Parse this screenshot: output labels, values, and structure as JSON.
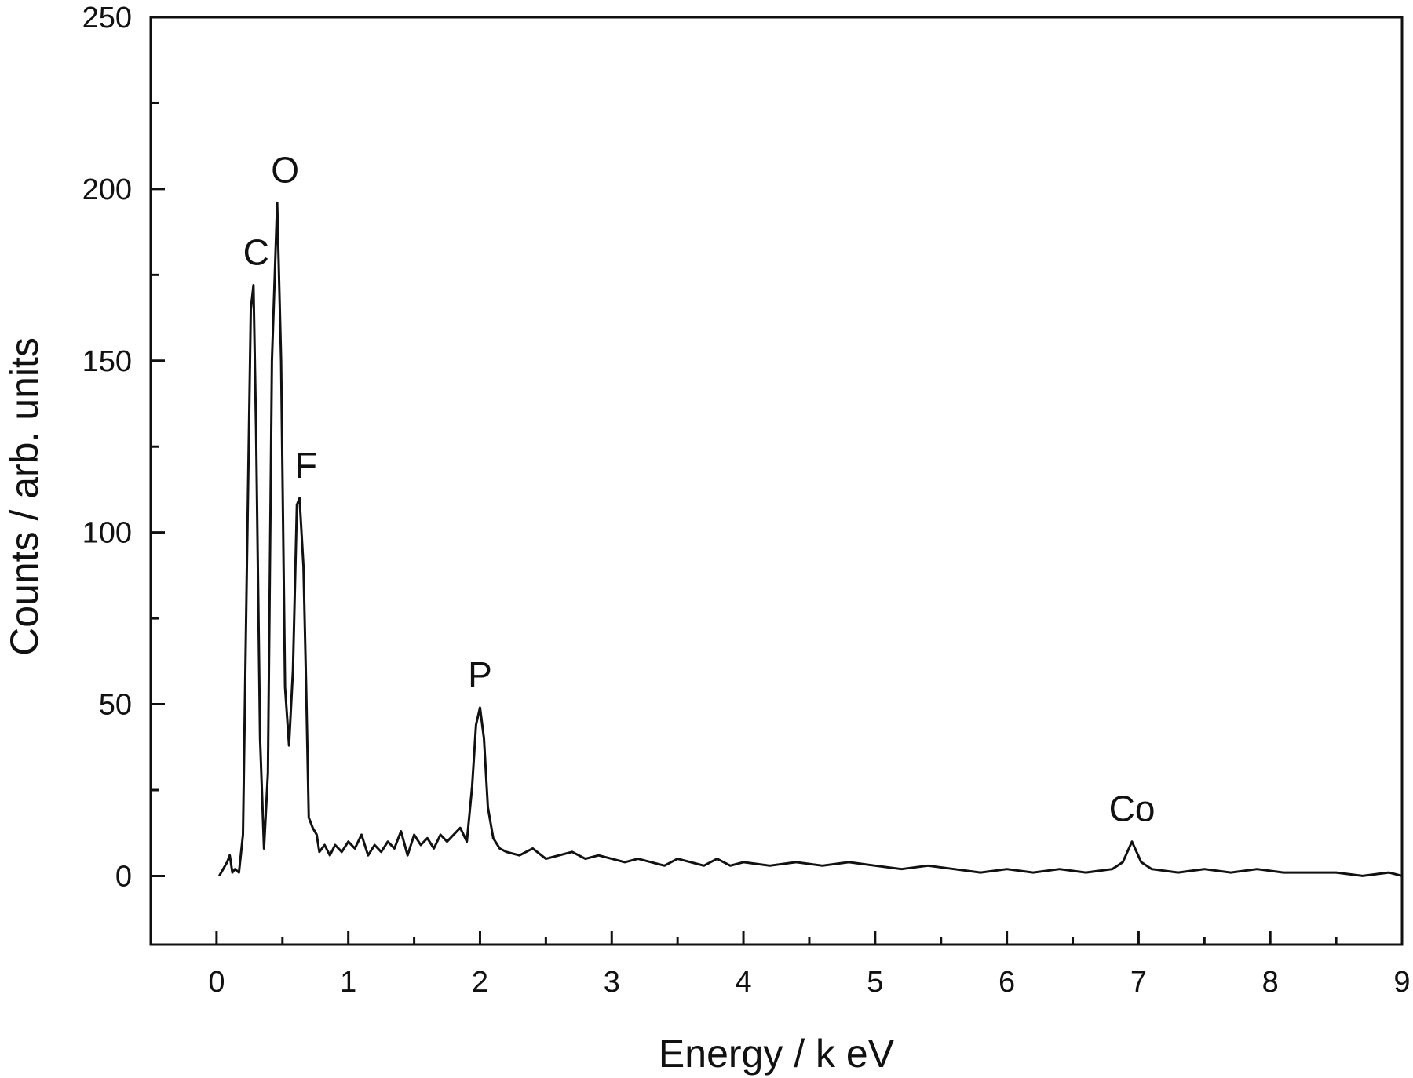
{
  "chart_data": {
    "type": "line",
    "title": "",
    "xlabel": "Energy /  k eV",
    "ylabel": "Counts / arb. units",
    "xlim": [
      -0.5,
      9
    ],
    "ylim": [
      -20,
      250
    ],
    "x_ticks": [
      0,
      1,
      2,
      3,
      4,
      5,
      6,
      7,
      8,
      9
    ],
    "x_tick_labels": [
      "0",
      "1",
      "2",
      "3",
      "4",
      "5",
      "6",
      "7",
      "8",
      "9"
    ],
    "y_ticks": [
      0,
      50,
      100,
      150,
      200,
      250
    ],
    "y_tick_labels": [
      "0",
      "50",
      "100",
      "150",
      "200",
      "250"
    ],
    "grid": false,
    "legend": false,
    "line_color": "#111111",
    "series": [
      {
        "x": [
          0.02,
          0.08,
          0.1,
          0.12,
          0.14,
          0.17,
          0.2,
          0.23,
          0.26,
          0.28,
          0.3,
          0.33,
          0.36,
          0.39,
          0.42,
          0.46,
          0.49,
          0.52,
          0.55,
          0.58,
          0.61,
          0.63,
          0.66,
          0.68,
          0.7,
          0.73,
          0.76,
          0.78,
          0.82,
          0.86,
          0.9,
          0.95,
          1.0,
          1.05,
          1.1,
          1.15,
          1.2,
          1.25,
          1.3,
          1.35,
          1.4,
          1.45,
          1.5,
          1.55,
          1.6,
          1.65,
          1.7,
          1.75,
          1.8,
          1.85,
          1.9,
          1.94,
          1.97,
          2.0,
          2.03,
          2.06,
          2.1,
          2.15,
          2.2,
          2.3,
          2.4,
          2.5,
          2.6,
          2.7,
          2.8,
          2.9,
          3.0,
          3.1,
          3.2,
          3.3,
          3.4,
          3.5,
          3.6,
          3.7,
          3.8,
          3.9,
          4.0,
          4.2,
          4.4,
          4.6,
          4.8,
          5.0,
          5.2,
          5.4,
          5.6,
          5.8,
          6.0,
          6.2,
          6.4,
          6.6,
          6.8,
          6.88,
          6.95,
          7.02,
          7.1,
          7.3,
          7.5,
          7.7,
          7.9,
          8.1,
          8.3,
          8.5,
          8.7,
          8.9,
          9.0
        ],
        "y": [
          0,
          4,
          6,
          1,
          2,
          1,
          12,
          90,
          165,
          172,
          130,
          40,
          8,
          30,
          150,
          196,
          150,
          55,
          38,
          60,
          108,
          110,
          90,
          55,
          17,
          14,
          12,
          7,
          9,
          6,
          9,
          7,
          10,
          8,
          12,
          6,
          9,
          7,
          10,
          8,
          13,
          6,
          12,
          9,
          11,
          8,
          12,
          10,
          12,
          14,
          10,
          26,
          44,
          49,
          40,
          20,
          11,
          8,
          7,
          6,
          8,
          5,
          6,
          7,
          5,
          6,
          5,
          4,
          5,
          4,
          3,
          5,
          4,
          3,
          5,
          3,
          4,
          3,
          4,
          3,
          4,
          3,
          2,
          3,
          2,
          1,
          2,
          1,
          2,
          1,
          2,
          4,
          10,
          4,
          2,
          1,
          2,
          1,
          2,
          1,
          1,
          1,
          0,
          1,
          0
        ]
      }
    ],
    "annotations": [
      {
        "text": "C",
        "x": 0.3,
        "y": 172
      },
      {
        "text": "O",
        "x": 0.52,
        "y": 196
      },
      {
        "text": "F",
        "x": 0.68,
        "y": 110
      },
      {
        "text": "P",
        "x": 2.0,
        "y": 49
      },
      {
        "text": "Co",
        "x": 6.95,
        "y": 10
      }
    ]
  }
}
